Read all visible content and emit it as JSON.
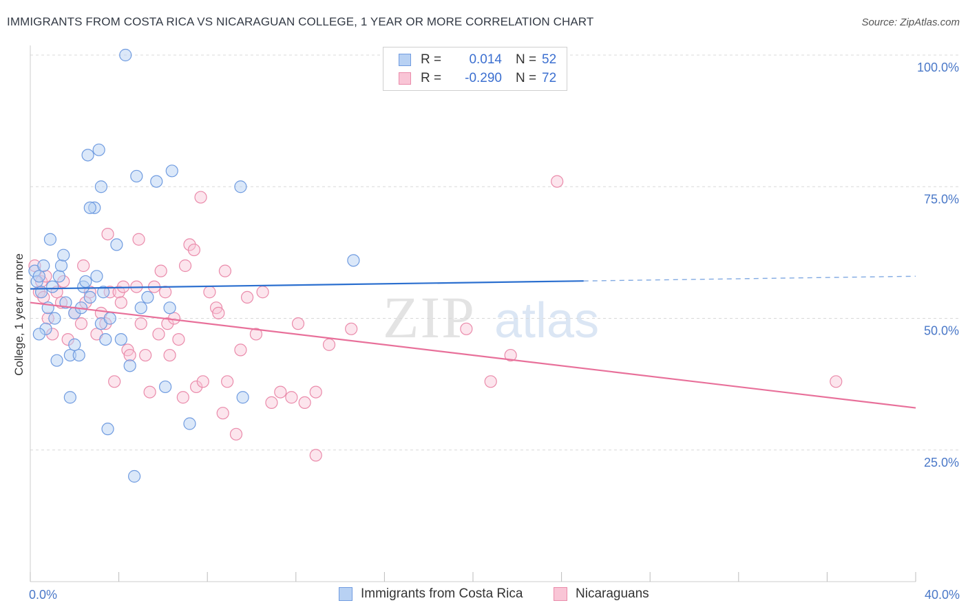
{
  "title": "IMMIGRANTS FROM COSTA RICA VS NICARAGUAN COLLEGE, 1 YEAR OR MORE CORRELATION CHART",
  "source": "Source: ZipAtlas.com",
  "watermark": {
    "zip": "ZIP",
    "atlas": "atlas"
  },
  "legend": {
    "r_label": "R =",
    "n_label": "N =",
    "series": [
      {
        "name": "Immigrants from Costa Rica",
        "r": "0.014",
        "n": "52",
        "fill": "#b8d1f3",
        "stroke": "#6f9be0"
      },
      {
        "name": "Nicaraguans",
        "r": "-0.290",
        "n": "72",
        "fill": "#f9c5d6",
        "stroke": "#ea8aaa"
      }
    ]
  },
  "colors": {
    "blue_dot": "#6f9be0",
    "blue_fill": "#b8d1f3",
    "blue_line": "#2b6fcf",
    "pink_dot": "#ea8aaa",
    "pink_fill": "#f9c5d6",
    "pink_line": "#e8709a",
    "grid": "#d8d8d8",
    "tick_label": "#4a78c8"
  },
  "chart_data": {
    "type": "scatter",
    "title": "IMMIGRANTS FROM COSTA RICA VS NICARAGUAN COLLEGE, 1 YEAR OR MORE CORRELATION CHART",
    "xlabel": "",
    "ylabel": "College, 1 year or more",
    "xlim": [
      0,
      40
    ],
    "ylim": [
      0,
      100
    ],
    "x_tick_labels": [
      {
        "value": 0,
        "label": "0.0%"
      },
      {
        "value": 40,
        "label": "40.0%"
      }
    ],
    "y_tick_labels": [
      {
        "value": 100,
        "label": "100.0%"
      },
      {
        "value": 75,
        "label": "75.0%"
      },
      {
        "value": 50,
        "label": "50.0%"
      },
      {
        "value": 25,
        "label": "25.0%"
      }
    ],
    "series": [
      {
        "name": "Immigrants from Costa Rica",
        "trend": {
          "x0": 0,
          "y0": 55.6,
          "x1": 25,
          "y1": 57.1,
          "dashed_to_x": 40,
          "dashed_to_y": 58.0
        },
        "points": [
          [
            0.2,
            59
          ],
          [
            0.3,
            57
          ],
          [
            0.4,
            58
          ],
          [
            0.5,
            55
          ],
          [
            0.6,
            60
          ],
          [
            0.7,
            48
          ],
          [
            0.8,
            52
          ],
          [
            0.9,
            65
          ],
          [
            1.0,
            56
          ],
          [
            1.2,
            42
          ],
          [
            1.3,
            58
          ],
          [
            1.4,
            60
          ],
          [
            1.5,
            62
          ],
          [
            1.6,
            53
          ],
          [
            1.8,
            35
          ],
          [
            1.8,
            43
          ],
          [
            2.0,
            51
          ],
          [
            2.2,
            43
          ],
          [
            2.3,
            52
          ],
          [
            2.4,
            56
          ],
          [
            2.5,
            57
          ],
          [
            2.6,
            81
          ],
          [
            2.7,
            54
          ],
          [
            2.9,
            71
          ],
          [
            3.0,
            58
          ],
          [
            3.1,
            82
          ],
          [
            3.2,
            49
          ],
          [
            3.2,
            75
          ],
          [
            3.4,
            46
          ],
          [
            3.5,
            29
          ],
          [
            3.6,
            50
          ],
          [
            3.9,
            64
          ],
          [
            4.1,
            46
          ],
          [
            4.3,
            100
          ],
          [
            4.5,
            41
          ],
          [
            4.8,
            77
          ],
          [
            5.0,
            52
          ],
          [
            5.3,
            54
          ],
          [
            5.7,
            76
          ],
          [
            6.1,
            37
          ],
          [
            6.3,
            52
          ],
          [
            6.4,
            78
          ],
          [
            7.2,
            30
          ],
          [
            9.5,
            75
          ],
          [
            9.6,
            35
          ],
          [
            14.6,
            61
          ],
          [
            4.7,
            20
          ],
          [
            3.3,
            55
          ],
          [
            2.0,
            45
          ],
          [
            0.4,
            47
          ],
          [
            2.7,
            71
          ],
          [
            1.1,
            50
          ]
        ]
      },
      {
        "name": "Nicaraguans",
        "trend": {
          "x0": 0,
          "y0": 53,
          "x1": 40,
          "y1": 33
        },
        "points": [
          [
            0.2,
            60
          ],
          [
            0.4,
            55
          ],
          [
            0.5,
            57
          ],
          [
            0.6,
            54
          ],
          [
            0.7,
            58
          ],
          [
            0.8,
            50
          ],
          [
            1.0,
            47
          ],
          [
            1.2,
            55
          ],
          [
            1.4,
            53
          ],
          [
            1.5,
            57
          ],
          [
            1.7,
            46
          ],
          [
            2.0,
            51
          ],
          [
            2.3,
            49
          ],
          [
            2.4,
            60
          ],
          [
            2.5,
            53
          ],
          [
            2.7,
            55
          ],
          [
            3.0,
            47
          ],
          [
            3.2,
            51
          ],
          [
            3.4,
            49
          ],
          [
            3.5,
            66
          ],
          [
            3.6,
            55
          ],
          [
            3.8,
            38
          ],
          [
            4.0,
            55
          ],
          [
            4.1,
            53
          ],
          [
            4.2,
            56
          ],
          [
            4.4,
            44
          ],
          [
            4.5,
            43
          ],
          [
            4.8,
            56
          ],
          [
            4.9,
            65
          ],
          [
            5.0,
            49
          ],
          [
            5.2,
            43
          ],
          [
            5.4,
            36
          ],
          [
            5.6,
            56
          ],
          [
            5.8,
            47
          ],
          [
            5.9,
            59
          ],
          [
            6.1,
            55
          ],
          [
            6.2,
            49
          ],
          [
            6.3,
            43
          ],
          [
            6.5,
            50
          ],
          [
            6.7,
            46
          ],
          [
            6.9,
            35
          ],
          [
            7.0,
            60
          ],
          [
            7.2,
            64
          ],
          [
            7.4,
            63
          ],
          [
            7.5,
            37
          ],
          [
            7.7,
            73
          ],
          [
            7.8,
            38
          ],
          [
            8.1,
            55
          ],
          [
            8.4,
            52
          ],
          [
            8.5,
            51
          ],
          [
            8.7,
            32
          ],
          [
            8.8,
            59
          ],
          [
            8.9,
            38
          ],
          [
            9.3,
            28
          ],
          [
            9.5,
            44
          ],
          [
            9.8,
            54
          ],
          [
            10.2,
            47
          ],
          [
            10.5,
            55
          ],
          [
            10.9,
            34
          ],
          [
            11.3,
            36
          ],
          [
            11.8,
            35
          ],
          [
            12.1,
            49
          ],
          [
            12.4,
            34
          ],
          [
            12.9,
            36
          ],
          [
            12.9,
            24
          ],
          [
            13.5,
            45
          ],
          [
            19.7,
            48
          ],
          [
            20.8,
            38
          ],
          [
            21.7,
            43
          ],
          [
            23.8,
            76
          ],
          [
            36.4,
            38
          ],
          [
            14.5,
            48
          ]
        ]
      }
    ]
  }
}
